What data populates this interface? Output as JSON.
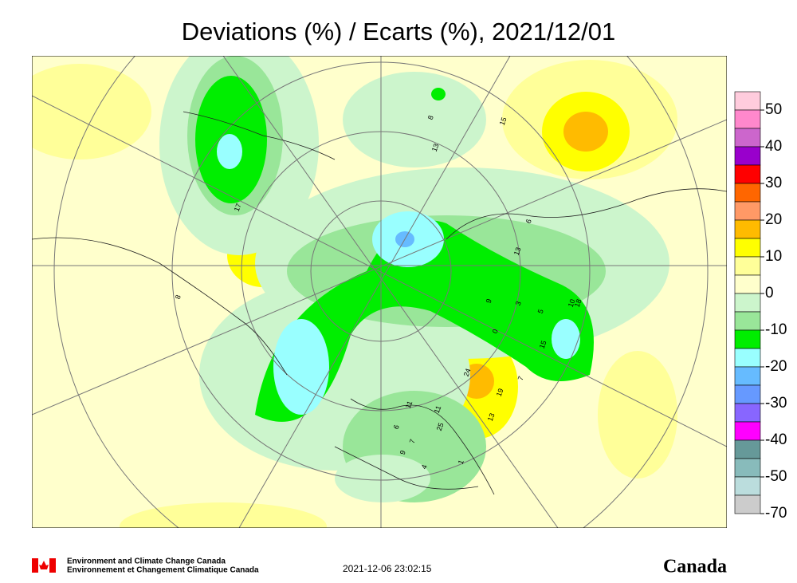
{
  "title": "Deviations (%) / Ecarts (%), 2021/12/01",
  "legend": {
    "colors": [
      "#ffccdd",
      "#ff88cc",
      "#cc66cc",
      "#9900cc",
      "#ff0000",
      "#ff6600",
      "#ff9966",
      "#ffbb00",
      "#ffff00",
      "#ffff99",
      "#ffffcc",
      "#ccf5cc",
      "#99e699",
      "#00ee00",
      "#99ffff",
      "#66bbff",
      "#6699ff",
      "#8866ff",
      "#ff00ff",
      "#669999",
      "#88bbbb",
      "#bbdddd",
      "#cccccc"
    ],
    "labels": [
      50,
      40,
      30,
      20,
      10,
      0,
      -10,
      -20,
      -30,
      -40,
      -50,
      -70
    ]
  },
  "contour_labels": [
    17,
    8,
    13,
    15,
    8,
    6,
    13,
    9,
    3,
    5,
    10,
    18,
    0,
    15,
    7,
    24,
    19,
    13,
    11,
    11,
    25,
    9,
    7,
    6,
    4,
    1
  ],
  "footer": {
    "org_en": "Environment and Climate Change Canada",
    "org_fr": "Environnement et Changement Climatique Canada",
    "timestamp": "2021-12-06 23:02:15",
    "wordmark": "Canada"
  }
}
